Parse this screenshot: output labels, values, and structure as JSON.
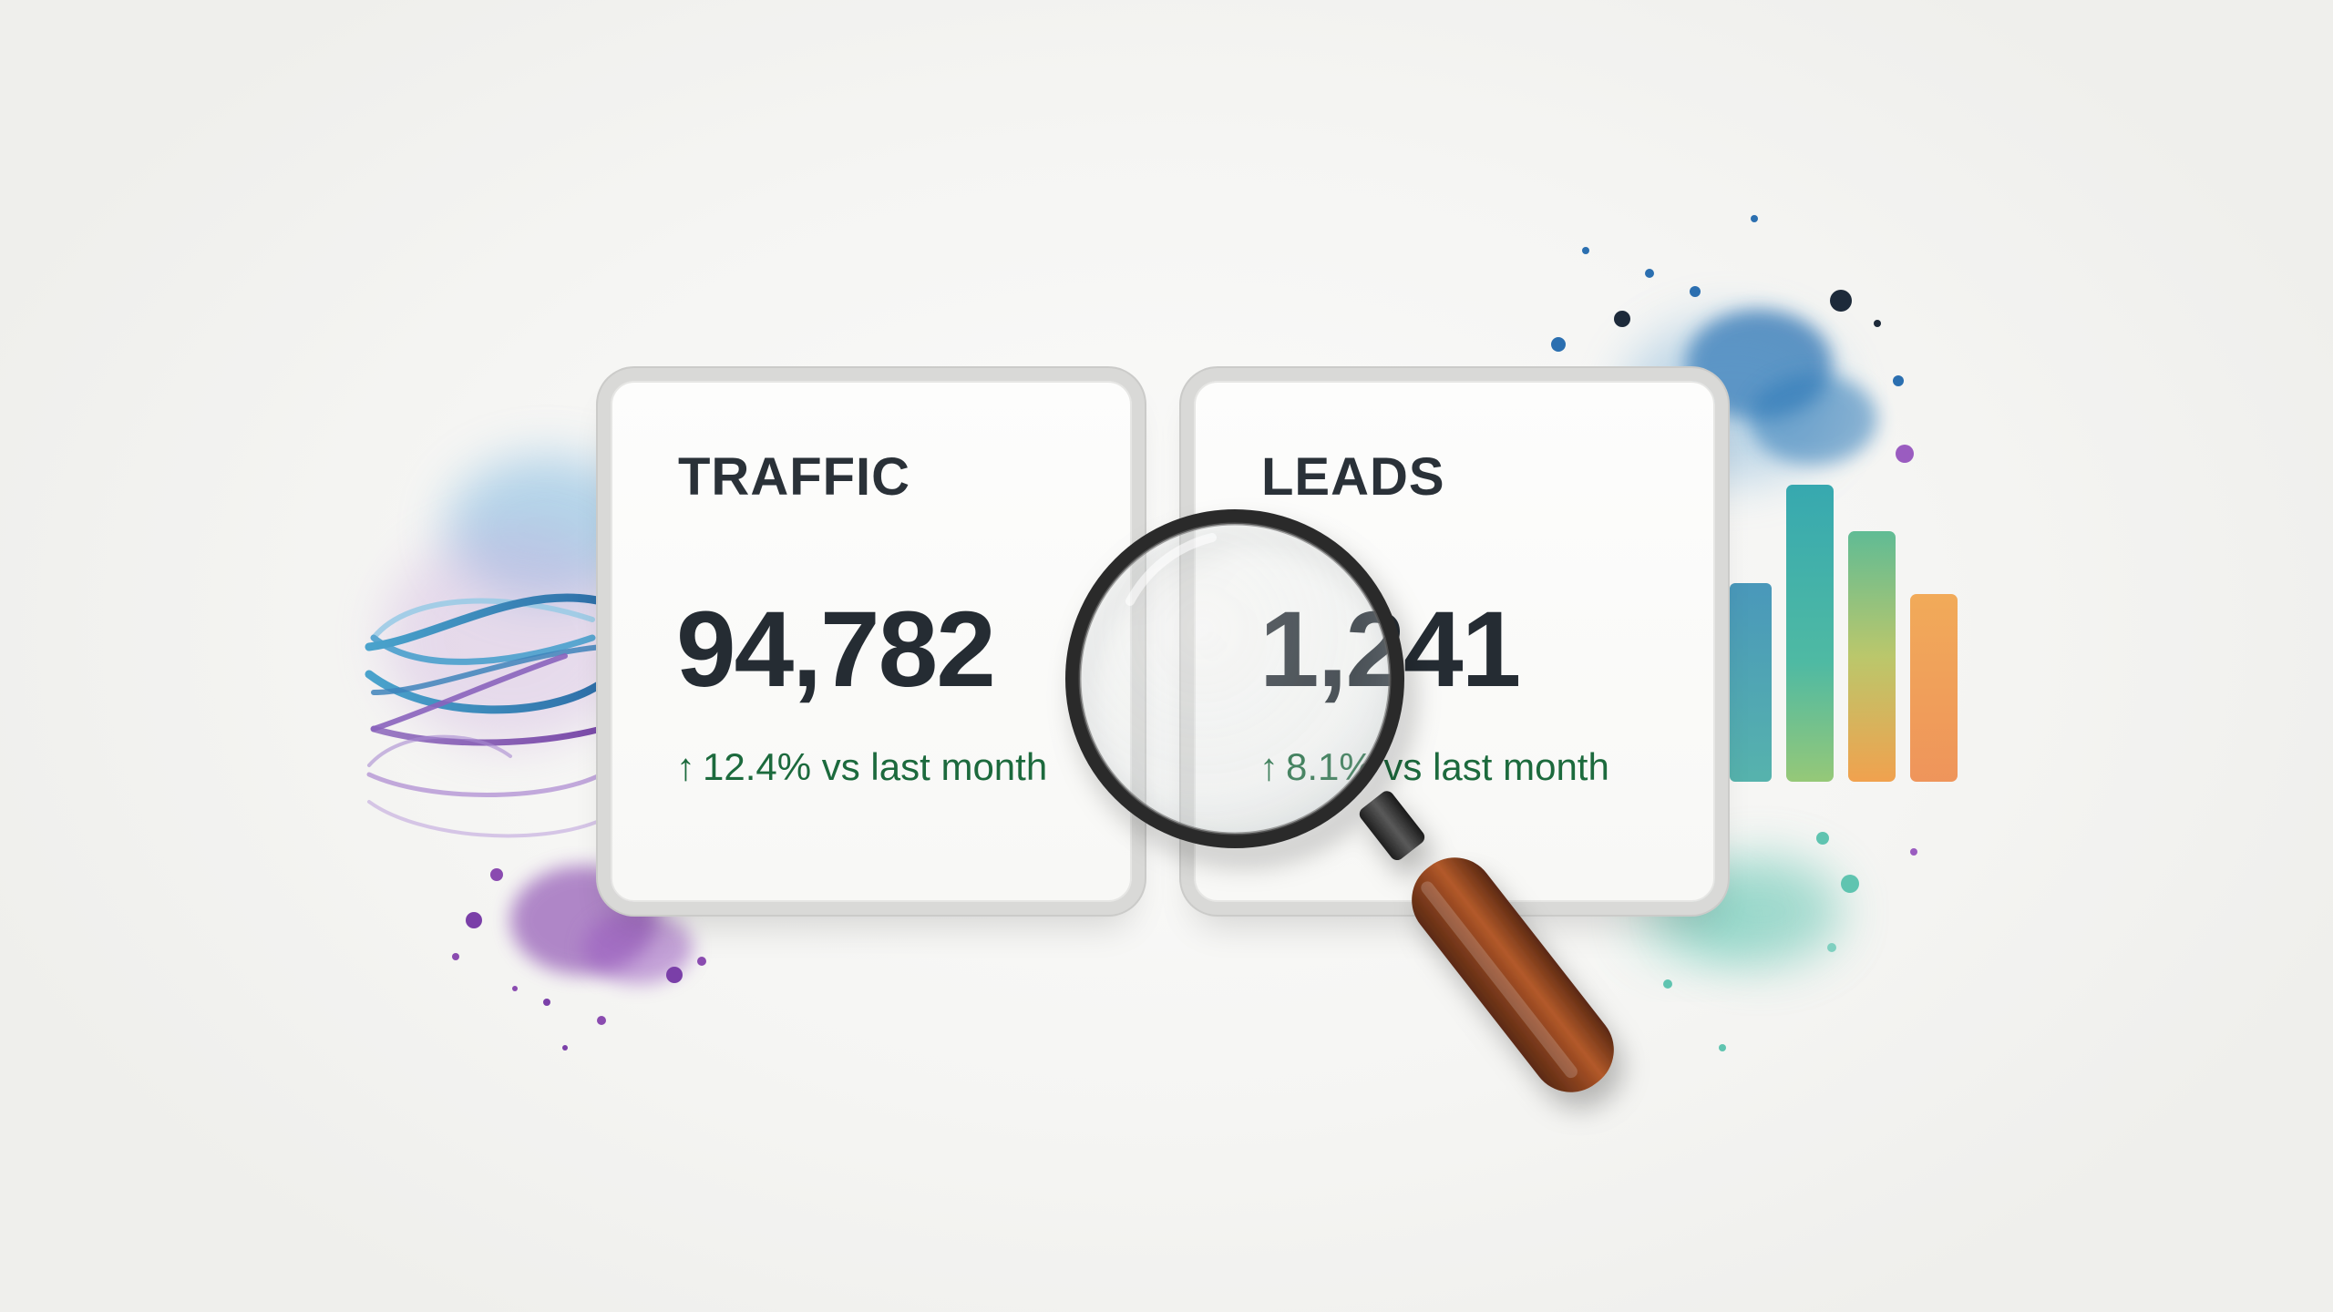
{
  "cards": [
    {
      "label": "TRAFFIC",
      "value": "94,782",
      "delta_arrow": "↑",
      "delta_text": "12.4% vs last month"
    },
    {
      "label": "LEADS",
      "value": "1,241",
      "delta_arrow": "↑",
      "delta_text": "8.1% vs last month"
    }
  ],
  "colors": {
    "positive_delta": "#1c6a3d",
    "heading": "#2a3138",
    "bar_colors": [
      "#2f8fb0",
      "#2fb3a8",
      "#8cc06a",
      "#f08a3c"
    ]
  },
  "decorations": {
    "left": "watercolor-wave-lines",
    "right": "watercolor-bar-chart",
    "overlay": "magnifying-glass-icon"
  }
}
